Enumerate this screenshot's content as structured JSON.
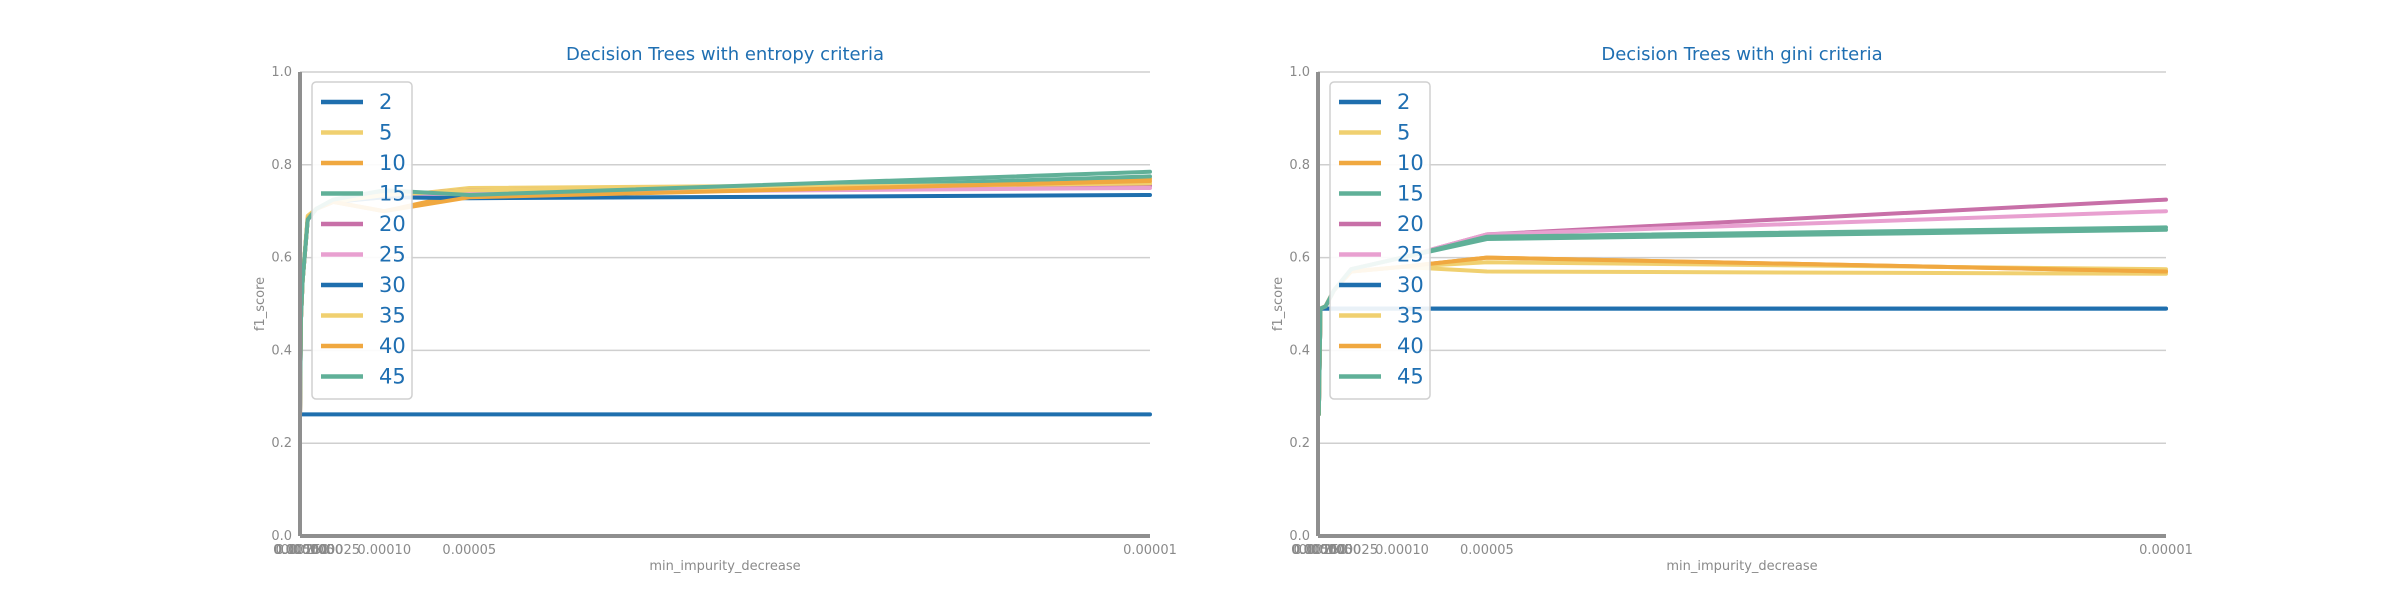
{
  "colors": {
    "series": [
      "#1f6fae",
      "#f0d070",
      "#f0a840",
      "#60b098",
      "#c870a8",
      "#e8a0d0",
      "#1f6fae",
      "#f0d070",
      "#f0a840",
      "#60b098"
    ],
    "title": "#1f6fb2",
    "grid": "#cfcfcf",
    "spine": "#8f8f8f",
    "label": "#8a8a8a"
  },
  "chart_data": [
    {
      "type": "line",
      "title": "Decision Trees with entropy criteria",
      "xlabel": "min_impurity_decrease",
      "ylabel": "f1_score",
      "x_scale": "reciprocal",
      "x_tick_labels": [
        "0.01000",
        "0.00500",
        "0.00250",
        "0.00100",
        "0.00050",
        "0.00025",
        "0.00010",
        "0.00005",
        "0.00001"
      ],
      "x": [
        0.01,
        0.005,
        0.0025,
        0.001,
        0.0005,
        0.00025,
        0.0001,
        5e-05,
        1e-05
      ],
      "ylim": [
        0,
        1
      ],
      "y_ticks": [
        "0.0",
        "0.2",
        "0.4",
        "0.6",
        "0.8",
        "1.0"
      ],
      "grid": "horizontal",
      "legend_position": "top-left",
      "series": [
        {
          "name": "2",
          "values": [
            0.262,
            0.262,
            0.262,
            0.262,
            0.262,
            0.262,
            0.262,
            0.262,
            0.262
          ]
        },
        {
          "name": "5",
          "values": [
            0.262,
            0.465,
            0.55,
            0.69,
            0.705,
            0.72,
            0.73,
            0.75,
            0.76
          ]
        },
        {
          "name": "10",
          "values": [
            0.262,
            0.465,
            0.55,
            0.685,
            0.705,
            0.72,
            0.7,
            0.74,
            0.77
          ]
        },
        {
          "name": "15",
          "values": [
            0.262,
            0.465,
            0.55,
            0.682,
            0.705,
            0.725,
            0.74,
            0.73,
            0.775
          ]
        },
        {
          "name": "20",
          "values": [
            0.262,
            0.465,
            0.55,
            0.682,
            0.705,
            0.722,
            0.735,
            0.745,
            0.755
          ]
        },
        {
          "name": "25",
          "values": [
            0.262,
            0.465,
            0.55,
            0.682,
            0.705,
            0.722,
            0.73,
            0.74,
            0.75
          ]
        },
        {
          "name": "30",
          "values": [
            0.262,
            0.465,
            0.55,
            0.682,
            0.705,
            0.72,
            0.73,
            0.728,
            0.735
          ]
        },
        {
          "name": "35",
          "values": [
            0.262,
            0.465,
            0.55,
            0.684,
            0.705,
            0.72,
            0.735,
            0.745,
            0.76
          ]
        },
        {
          "name": "40",
          "values": [
            0.262,
            0.465,
            0.55,
            0.683,
            0.705,
            0.72,
            0.7,
            0.73,
            0.765
          ]
        },
        {
          "name": "45",
          "values": [
            0.262,
            0.465,
            0.55,
            0.682,
            0.705,
            0.725,
            0.745,
            0.735,
            0.785
          ]
        }
      ]
    },
    {
      "type": "line",
      "title": "Decision Trees with gini criteria",
      "xlabel": "min_impurity_decrease",
      "ylabel": "f1_score",
      "x_scale": "reciprocal",
      "x_tick_labels": [
        "0.01000",
        "0.00500",
        "0.00250",
        "0.00100",
        "0.00050",
        "0.00025",
        "0.00010",
        "0.00005",
        "0.00001"
      ],
      "x": [
        0.01,
        0.005,
        0.0025,
        0.001,
        0.0005,
        0.00025,
        0.0001,
        5e-05,
        1e-05
      ],
      "ylim": [
        0,
        1
      ],
      "y_ticks": [
        "0.0",
        "0.2",
        "0.4",
        "0.6",
        "0.8",
        "1.0"
      ],
      "grid": "horizontal",
      "legend_position": "top-left",
      "series": [
        {
          "name": "2",
          "values": [
            0.262,
            0.262,
            0.49,
            0.49,
            0.49,
            0.49,
            0.49,
            0.49,
            0.49
          ]
        },
        {
          "name": "5",
          "values": [
            0.262,
            0.262,
            0.49,
            0.495,
            0.53,
            0.57,
            0.58,
            0.57,
            0.565
          ]
        },
        {
          "name": "10",
          "values": [
            0.262,
            0.262,
            0.49,
            0.495,
            0.53,
            0.57,
            0.58,
            0.6,
            0.57
          ]
        },
        {
          "name": "15",
          "values": [
            0.262,
            0.262,
            0.49,
            0.495,
            0.53,
            0.575,
            0.6,
            0.64,
            0.66
          ]
        },
        {
          "name": "20",
          "values": [
            0.262,
            0.262,
            0.49,
            0.495,
            0.53,
            0.575,
            0.6,
            0.65,
            0.725
          ]
        },
        {
          "name": "25",
          "values": [
            0.262,
            0.262,
            0.49,
            0.495,
            0.53,
            0.575,
            0.6,
            0.65,
            0.7
          ]
        },
        {
          "name": "30",
          "values": [
            0.262,
            0.262,
            0.49,
            0.49,
            0.49,
            0.49,
            0.49,
            0.49,
            0.49
          ]
        },
        {
          "name": "35",
          "values": [
            0.262,
            0.262,
            0.49,
            0.495,
            0.53,
            0.57,
            0.58,
            0.59,
            0.575
          ]
        },
        {
          "name": "40",
          "values": [
            0.262,
            0.262,
            0.49,
            0.495,
            0.53,
            0.57,
            0.58,
            0.6,
            0.57
          ]
        },
        {
          "name": "45",
          "values": [
            0.262,
            0.262,
            0.49,
            0.495,
            0.53,
            0.575,
            0.6,
            0.645,
            0.665
          ]
        }
      ]
    }
  ]
}
